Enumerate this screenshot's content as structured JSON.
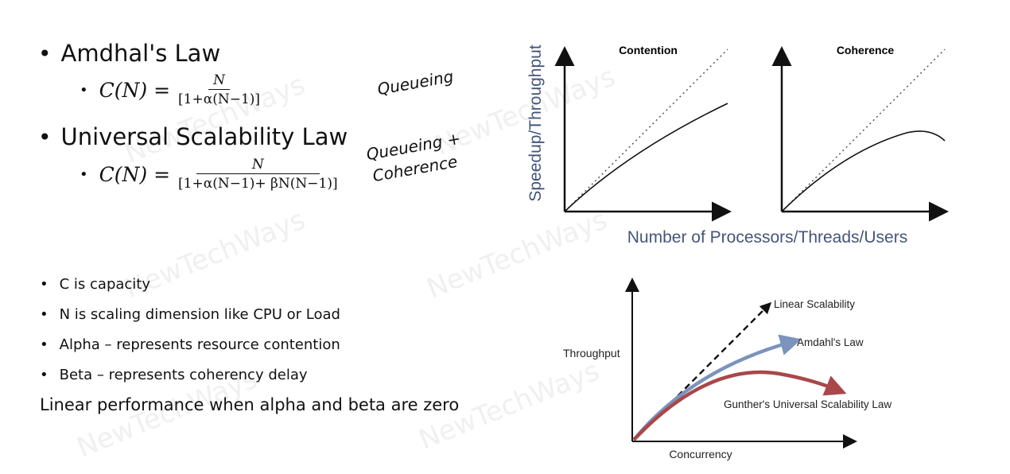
{
  "left": {
    "amdahl_title": "Amdhal's Law",
    "amdahl_lhs": "C(N) =",
    "amdahl_num": "N",
    "amdahl_den": "[1+α(N−1)]",
    "usl_title": "Universal Scalability Law",
    "usl_lhs": "C(N) =",
    "usl_num": "N",
    "usl_den": "[1+α(N−1)+ βN(N−1)]",
    "note_queueing": "Queueing",
    "note_queueing_coherence_1": "Queueing +",
    "note_queueing_coherence_2": "Coherence",
    "defs": [
      "C is capacity",
      "N is scaling dimension like CPU or Load",
      "Alpha – represents resource contention",
      "Beta – represents coherency delay"
    ],
    "summary": "Linear performance when alpha and beta are zero"
  },
  "top_charts": {
    "ylabel": "Speedup/Throughput",
    "xlabel": "Number of Processors/Threads/Users",
    "panels": [
      "Contention",
      "Coherence"
    ]
  },
  "bottom_chart": {
    "ylabel": "Throughput",
    "xlabel": "Concurrency",
    "series": [
      "Linear Scalability",
      "Amdahl's Law",
      "Gunther's Universal Scalability Law"
    ],
    "colors": {
      "linear": "#111111",
      "amdahl": "#7b93bd",
      "usl": "#a9474a"
    }
  },
  "watermark": "NewTechWays"
}
